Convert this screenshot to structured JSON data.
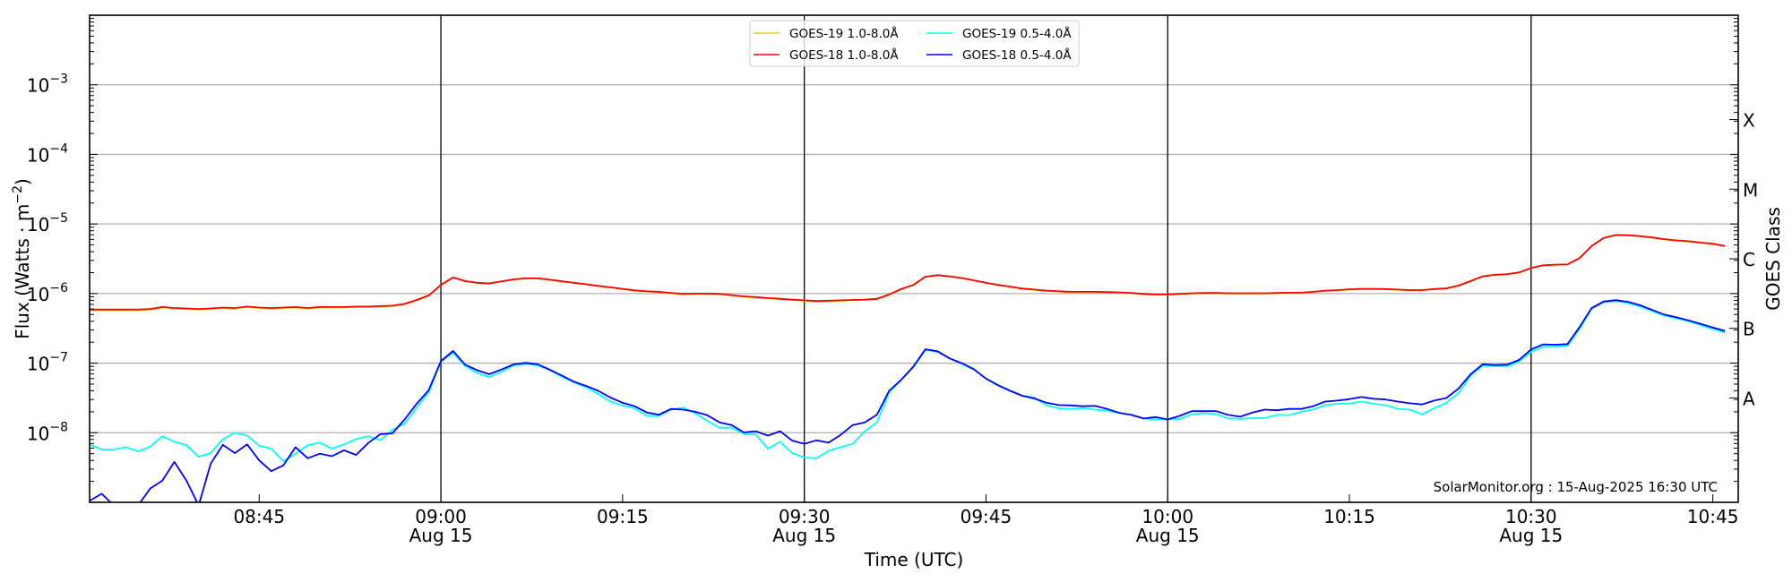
{
  "chart_data": {
    "type": "line",
    "title": "",
    "xlabel": "Time (UTC)",
    "ylabel": "Flux (Watts · m^-2)",
    "ylabel_parts": {
      "main": "Flux (Watts · m",
      "sup": "−2",
      "close": ")"
    },
    "y2label": "GOES Class",
    "yscale": "log",
    "ylim": [
      1e-09,
      0.01
    ],
    "xlim": [
      "08:31",
      "10:47"
    ],
    "date": "Aug 15",
    "grid": "horizontal at decades",
    "legend_position": "top-center",
    "yticks": [
      1e-08,
      1e-07,
      1e-06,
      1e-05,
      0.0001,
      0.001
    ],
    "ytick_labels": [
      {
        "base": "10",
        "exp": "−8"
      },
      {
        "base": "10",
        "exp": "−7"
      },
      {
        "base": "10",
        "exp": "−6"
      },
      {
        "base": "10",
        "exp": "−5"
      },
      {
        "base": "10",
        "exp": "−4"
      },
      {
        "base": "10",
        "exp": "−3"
      }
    ],
    "xticks": [
      {
        "time": "08:45",
        "label": "08:45",
        "sub": ""
      },
      {
        "time": "09:00",
        "label": "09:00",
        "sub": "Aug 15"
      },
      {
        "time": "09:15",
        "label": "09:15",
        "sub": ""
      },
      {
        "time": "09:30",
        "label": "09:30",
        "sub": "Aug 15"
      },
      {
        "time": "09:45",
        "label": "09:45",
        "sub": ""
      },
      {
        "time": "10:00",
        "label": "10:00",
        "sub": "Aug 15"
      },
      {
        "time": "10:15",
        "label": "10:15",
        "sub": ""
      },
      {
        "time": "10:30",
        "label": "10:30",
        "sub": "Aug 15"
      },
      {
        "time": "10:45",
        "label": "10:45",
        "sub": ""
      }
    ],
    "vertical_lines": [
      "09:00",
      "09:30",
      "10:00",
      "10:30"
    ],
    "goes_classes": [
      {
        "label": "A",
        "min": 1e-08
      },
      {
        "label": "B",
        "min": 1e-07
      },
      {
        "label": "C",
        "min": 1e-06
      },
      {
        "label": "M",
        "min": 1e-05
      },
      {
        "label": "X",
        "min": 0.0001
      }
    ],
    "watermark": "SolarMonitor.org : 15-Aug-2025 16:30 UTC",
    "x": [
      "08:31",
      "08:32",
      "08:33",
      "08:34",
      "08:35",
      "08:36",
      "08:37",
      "08:38",
      "08:39",
      "08:40",
      "08:41",
      "08:42",
      "08:43",
      "08:44",
      "08:45",
      "08:46",
      "08:47",
      "08:48",
      "08:49",
      "08:50",
      "08:51",
      "08:52",
      "08:53",
      "08:54",
      "08:55",
      "08:56",
      "08:57",
      "08:58",
      "08:59",
      "09:00",
      "09:01",
      "09:02",
      "09:03",
      "09:04",
      "09:05",
      "09:06",
      "09:07",
      "09:08",
      "09:09",
      "09:10",
      "09:11",
      "09:12",
      "09:13",
      "09:14",
      "09:15",
      "09:16",
      "09:17",
      "09:18",
      "09:19",
      "09:20",
      "09:21",
      "09:22",
      "09:23",
      "09:24",
      "09:25",
      "09:26",
      "09:27",
      "09:28",
      "09:29",
      "09:30",
      "09:31",
      "09:32",
      "09:33",
      "09:34",
      "09:35",
      "09:36",
      "09:37",
      "09:38",
      "09:39",
      "09:40",
      "09:41",
      "09:42",
      "09:43",
      "09:44",
      "09:45",
      "09:46",
      "09:47",
      "09:48",
      "09:49",
      "09:50",
      "09:51",
      "09:52",
      "09:53",
      "09:54",
      "09:55",
      "09:56",
      "09:57",
      "09:58",
      "09:59",
      "10:00",
      "10:01",
      "10:02",
      "10:03",
      "10:04",
      "10:05",
      "10:06",
      "10:07",
      "10:08",
      "10:09",
      "10:10",
      "10:11",
      "10:12",
      "10:13",
      "10:14",
      "10:15",
      "10:16",
      "10:17",
      "10:18",
      "10:19",
      "10:20",
      "10:21",
      "10:22",
      "10:23",
      "10:24",
      "10:25",
      "10:26",
      "10:27",
      "10:28",
      "10:29",
      "10:30",
      "10:31",
      "10:32",
      "10:33",
      "10:34",
      "10:35",
      "10:36",
      "10:37",
      "10:38",
      "10:39",
      "10:40",
      "10:41",
      "10:42",
      "10:43",
      "10:44",
      "10:45",
      "10:46"
    ],
    "series": [
      {
        "name": "GOES-19 1.0-8.0Å",
        "color": "#ffc800",
        "values": [
          5.8e-07,
          5.8e-07,
          5.8e-07,
          5.8e-07,
          5.8e-07,
          5.9e-07,
          6.3e-07,
          6.1e-07,
          6e-07,
          5.9e-07,
          6e-07,
          6.2e-07,
          6.1e-07,
          6.4e-07,
          6.2e-07,
          6.1e-07,
          6.2e-07,
          6.3e-07,
          6.1e-07,
          6.3e-07,
          6.3e-07,
          6.3e-07,
          6.4e-07,
          6.4e-07,
          6.5e-07,
          6.6e-07,
          7e-07,
          8e-07,
          9.3e-07,
          1.32e-06,
          1.69e-06,
          1.5e-06,
          1.42e-06,
          1.39e-06,
          1.49e-06,
          1.59e-06,
          1.65e-06,
          1.65e-06,
          1.57e-06,
          1.49e-06,
          1.42e-06,
          1.35e-06,
          1.28e-06,
          1.22e-06,
          1.16e-06,
          1.1e-06,
          1.07e-06,
          1.05e-06,
          1.01e-06,
          9.8e-07,
          9.9e-07,
          9.9e-07,
          9.8e-07,
          9.4e-07,
          9e-07,
          8.8e-07,
          8.5e-07,
          8.3e-07,
          8.1e-07,
          7.9e-07,
          7.7e-07,
          7.8e-07,
          7.9e-07,
          8e-07,
          8.1e-07,
          8.3e-07,
          9.6e-07,
          1.15e-06,
          1.32e-06,
          1.74e-06,
          1.83e-06,
          1.76e-06,
          1.66e-06,
          1.54e-06,
          1.42e-06,
          1.32e-06,
          1.25e-06,
          1.17e-06,
          1.13e-06,
          1.09e-06,
          1.07e-06,
          1.05e-06,
          1.05e-06,
          1.05e-06,
          1.04e-06,
          1.03e-06,
          1.01e-06,
          9.8e-07,
          9.6e-07,
          9.6e-07,
          9.8e-07,
          1e-06,
          1.01e-06,
          1.01e-06,
          1e-06,
          1e-06,
          1e-06,
          1e-06,
          1.01e-06,
          1.02e-06,
          1.02e-06,
          1.05e-06,
          1.09e-06,
          1.11e-06,
          1.14e-06,
          1.16e-06,
          1.16e-06,
          1.15e-06,
          1.13e-06,
          1.11e-06,
          1.11e-06,
          1.15e-06,
          1.18e-06,
          1.29e-06,
          1.5e-06,
          1.76e-06,
          1.85e-06,
          1.89e-06,
          2e-06,
          2.32e-06,
          2.54e-06,
          2.59e-06,
          2.61e-06,
          3.22e-06,
          4.8e-06,
          6.3e-06,
          6.9e-06,
          6.85e-06,
          6.65e-06,
          6.35e-06,
          6e-06,
          5.75e-06,
          5.6e-06,
          5.35e-06,
          5.15e-06,
          4.8e-06
        ]
      },
      {
        "name": "GOES-18 1.0-8.0Å",
        "color": "#ff0000",
        "values": [
          5.9e-07,
          5.9e-07,
          5.9e-07,
          5.9e-07,
          5.9e-07,
          6e-07,
          6.4e-07,
          6.2e-07,
          6.1e-07,
          6e-07,
          6.1e-07,
          6.3e-07,
          6.2e-07,
          6.5e-07,
          6.3e-07,
          6.2e-07,
          6.3e-07,
          6.4e-07,
          6.2e-07,
          6.4e-07,
          6.4e-07,
          6.4e-07,
          6.5e-07,
          6.5e-07,
          6.6e-07,
          6.7e-07,
          7.1e-07,
          8.1e-07,
          9.4e-07,
          1.33e-06,
          1.7e-06,
          1.51e-06,
          1.43e-06,
          1.4e-06,
          1.5e-06,
          1.6e-06,
          1.66e-06,
          1.66e-06,
          1.58e-06,
          1.5e-06,
          1.43e-06,
          1.36e-06,
          1.29e-06,
          1.23e-06,
          1.17e-06,
          1.11e-06,
          1.08e-06,
          1.06e-06,
          1.02e-06,
          9.9e-07,
          1e-06,
          1e-06,
          9.9e-07,
          9.5e-07,
          9.1e-07,
          8.9e-07,
          8.6e-07,
          8.4e-07,
          8.2e-07,
          8e-07,
          7.8e-07,
          7.9e-07,
          8e-07,
          8.1e-07,
          8.2e-07,
          8.4e-07,
          9.7e-07,
          1.16e-06,
          1.33e-06,
          1.75e-06,
          1.84e-06,
          1.77e-06,
          1.67e-06,
          1.55e-06,
          1.43e-06,
          1.33e-06,
          1.26e-06,
          1.18e-06,
          1.14e-06,
          1.1e-06,
          1.08e-06,
          1.06e-06,
          1.06e-06,
          1.06e-06,
          1.05e-06,
          1.04e-06,
          1.02e-06,
          9.9e-07,
          9.7e-07,
          9.7e-07,
          9.9e-07,
          1.01e-06,
          1.02e-06,
          1.02e-06,
          1.01e-06,
          1.01e-06,
          1.01e-06,
          1.01e-06,
          1.02e-06,
          1.03e-06,
          1.03e-06,
          1.06e-06,
          1.1e-06,
          1.12e-06,
          1.15e-06,
          1.17e-06,
          1.17e-06,
          1.16e-06,
          1.14e-06,
          1.12e-06,
          1.12e-06,
          1.16e-06,
          1.19e-06,
          1.3e-06,
          1.51e-06,
          1.77e-06,
          1.86e-06,
          1.9e-06,
          2.01e-06,
          2.33e-06,
          2.55e-06,
          2.6e-06,
          2.62e-06,
          3.24e-06,
          4.83e-06,
          6.3e-06,
          6.95e-06,
          6.9e-06,
          6.7e-06,
          6.4e-06,
          6.05e-06,
          5.8e-06,
          5.65e-06,
          5.4e-06,
          5.2e-06,
          4.83e-06
        ]
      },
      {
        "name": "GOES-19 0.5-4.0Å",
        "color": "#00ffff",
        "values": [
          6.8e-09,
          5.75e-09,
          5.75e-09,
          6.2e-09,
          5.4e-09,
          6.3e-09,
          8.9e-09,
          7.4e-09,
          6.6e-09,
          4.5e-09,
          5.1e-09,
          8.1e-09,
          1e-08,
          9.1e-09,
          6.5e-09,
          5.9e-09,
          3.9e-09,
          5e-09,
          6.6e-09,
          7.2e-09,
          5.9e-09,
          6.8e-09,
          8.1e-09,
          8.9e-09,
          7.8e-09,
          1.1e-08,
          1.35e-08,
          2.3e-08,
          3.8e-08,
          1.05e-07,
          1.41e-07,
          9.1e-08,
          7.2e-08,
          6.35e-08,
          7.5e-08,
          9.3e-08,
          9.6e-08,
          9.3e-08,
          7.9e-08,
          6.35e-08,
          5.25e-08,
          4.5e-08,
          3.6e-08,
          2.8e-08,
          2.47e-08,
          2.24e-08,
          1.75e-08,
          1.75e-08,
          2.15e-08,
          2.3e-08,
          1.9e-08,
          1.48e-08,
          1.18e-08,
          1.18e-08,
          9.6e-09,
          9.4e-09,
          5.9e-09,
          7.4e-09,
          5.1e-09,
          4.4e-09,
          4.3e-09,
          5.5e-09,
          6.2e-09,
          6.95e-09,
          1.05e-08,
          1.41e-08,
          3.8e-08,
          5.75e-08,
          8.7e-08,
          1.55e-07,
          1.45e-07,
          1.17e-07,
          9.8e-08,
          8.05e-08,
          6e-08,
          4.8e-08,
          4e-08,
          3.4e-08,
          3.2e-08,
          2.47e-08,
          2.24e-08,
          2.2e-08,
          2.26e-08,
          2.15e-08,
          2.07e-08,
          1.93e-08,
          1.82e-08,
          1.6e-08,
          1.55e-08,
          1.58e-08,
          1.58e-08,
          1.84e-08,
          1.91e-08,
          1.84e-08,
          1.6e-08,
          1.58e-08,
          1.62e-08,
          1.62e-08,
          1.8e-08,
          1.79e-08,
          2e-08,
          2.15e-08,
          2.5e-08,
          2.6e-08,
          2.62e-08,
          2.8e-08,
          2.6e-08,
          2.5e-08,
          2.2e-08,
          2.15e-08,
          1.84e-08,
          2.24e-08,
          2.7e-08,
          3.7e-08,
          6.6e-08,
          9.2e-08,
          9.05e-08,
          8.9e-08,
          1.06e-07,
          1.45e-07,
          1.73e-07,
          1.72e-07,
          1.77e-07,
          3.13e-07,
          6.05e-07,
          7.5e-07,
          7.8e-07,
          7.3e-07,
          6.5e-07,
          5.6e-07,
          4.8e-07,
          4.4e-07,
          4e-07,
          3.5e-07,
          3.1e-07,
          2.75e-07
        ]
      },
      {
        "name": "GOES-18 0.5-4.0Å",
        "color": "#0000ff",
        "values": [
          1.05e-09,
          1.33e-09,
          9e-10,
          9e-10,
          9e-10,
          1.58e-09,
          2.04e-09,
          3.8e-09,
          2.04e-09,
          9e-10,
          3.6e-09,
          6.7e-09,
          5.1e-09,
          6.8e-09,
          4e-09,
          2.8e-09,
          3.4e-09,
          6.2e-09,
          4.3e-09,
          5e-09,
          4.6e-09,
          5.6e-09,
          4.8e-09,
          7.1e-09,
          9.5e-09,
          9.8e-09,
          1.55e-08,
          2.6e-08,
          4.1e-08,
          1.07e-07,
          1.5e-07,
          9.5e-08,
          7.9e-08,
          6.95e-08,
          8.1e-08,
          9.6e-08,
          1.01e-07,
          9.6e-08,
          8.05e-08,
          6.6e-08,
          5.4e-08,
          4.7e-08,
          4e-08,
          3.2e-08,
          2.7e-08,
          2.4e-08,
          1.95e-08,
          1.82e-08,
          2.2e-08,
          2.15e-08,
          2e-08,
          1.78e-08,
          1.41e-08,
          1.29e-08,
          1.01e-08,
          1.05e-08,
          9.1e-09,
          1.05e-08,
          7.7e-09,
          6.9e-09,
          7.8e-09,
          7.2e-09,
          9.3e-09,
          1.29e-08,
          1.41e-08,
          1.82e-08,
          4e-08,
          5.75e-08,
          8.9e-08,
          1.58e-07,
          1.48e-07,
          1.17e-07,
          1e-07,
          8.2e-08,
          6e-08,
          4.8e-08,
          4e-08,
          3.4e-08,
          3.1e-08,
          2.7e-08,
          2.5e-08,
          2.47e-08,
          2.4e-08,
          2.43e-08,
          2.2e-08,
          1.93e-08,
          1.8e-08,
          1.6e-08,
          1.68e-08,
          1.55e-08,
          1.75e-08,
          2.04e-08,
          2.04e-08,
          2.04e-08,
          1.8e-08,
          1.7e-08,
          1.95e-08,
          2.15e-08,
          2.1e-08,
          2.2e-08,
          2.2e-08,
          2.4e-08,
          2.8e-08,
          2.9e-08,
          3.04e-08,
          3.26e-08,
          3.07e-08,
          3e-08,
          2.8e-08,
          2.65e-08,
          2.55e-08,
          2.9e-08,
          3.16e-08,
          4.3e-08,
          6.9e-08,
          9.6e-08,
          9.4e-08,
          9.5e-08,
          1.11e-07,
          1.57e-07,
          1.86e-07,
          1.84e-07,
          1.88e-07,
          3.3e-07,
          6.2e-07,
          7.7e-07,
          8.05e-07,
          7.6e-07,
          6.8e-07,
          5.8e-07,
          5e-07,
          4.55e-07,
          4.1e-07,
          3.66e-07,
          3.26e-07,
          2.9e-07
        ]
      }
    ]
  }
}
